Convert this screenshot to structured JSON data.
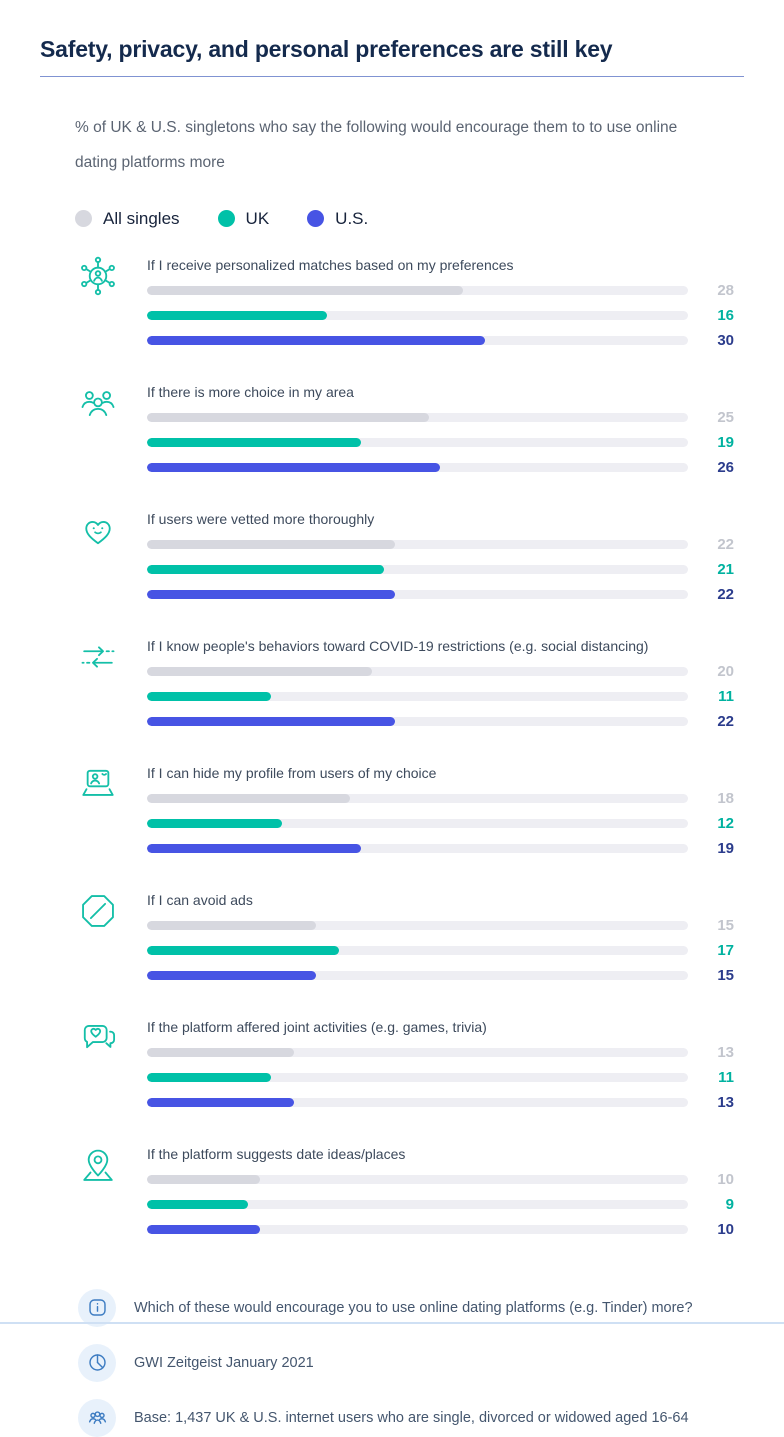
{
  "page": {
    "title": "Safety, privacy, and personal preferences are still key",
    "subtitle": "% of UK & U.S. singletons who say the following would encourage them to to use online dating platforms more"
  },
  "colors": {
    "all_singles_bar": "#d7d8df",
    "uk_bar": "#00c1a8",
    "us_bar": "#4754e4",
    "all_singles_value": "#c2c5cd",
    "uk_value": "#00b2a0",
    "us_value": "#2b3c8c",
    "bar_track": "#eeeef3",
    "icon_accent": "#14bfa8",
    "footnote_icon_accent": "#3d7cc2",
    "title_rule": "#8093d2"
  },
  "legend": [
    {
      "label": "All singles",
      "color": "#d7d8df"
    },
    {
      "label": "UK",
      "color": "#00c1a8"
    },
    {
      "label": "U.S.",
      "color": "#4754e4"
    }
  ],
  "chart_data": {
    "type": "bar",
    "orientation": "horizontal",
    "title": "Safety, privacy, and personal preferences are still key",
    "subtitle": "% of UK & U.S. singletons who say the following would encourage them to to use online dating platforms more",
    "xlim": [
      0,
      48
    ],
    "legend_position": "top",
    "grid": false,
    "categories": [
      "If I receive personalized matches based on my preferences",
      "If there is more choice in my area",
      "If users were vetted more thoroughly",
      "If I know people's behaviors toward COVID-19 restrictions (e.g. social distancing)",
      "If I can hide my profile from users of my choice",
      "If I can avoid ads",
      "If the platform affered joint activities (e.g. games, trivia)",
      "If the platform suggests date ideas/places"
    ],
    "icons": [
      "personalized-matches-icon",
      "more-choice-icon",
      "vetted-users-icon",
      "covid-behaviors-icon",
      "hide-profile-icon",
      "avoid-ads-icon",
      "joint-activities-icon",
      "date-ideas-icon"
    ],
    "series": [
      {
        "name": "All singles",
        "color": "#d7d8df",
        "value_color": "#c2c5cd",
        "values": [
          28,
          25,
          22,
          20,
          18,
          15,
          13,
          10
        ]
      },
      {
        "name": "UK",
        "color": "#00c1a8",
        "value_color": "#00b2a0",
        "values": [
          16,
          19,
          21,
          11,
          12,
          17,
          11,
          9
        ]
      },
      {
        "name": "U.S.",
        "color": "#4754e4",
        "value_color": "#2b3c8c",
        "values": [
          30,
          26,
          22,
          22,
          19,
          15,
          13,
          10
        ]
      }
    ]
  },
  "footnotes": [
    {
      "icon": "info-icon",
      "text": "Which of these would encourage you to use online dating platforms (e.g. Tinder) more?"
    },
    {
      "icon": "pie-chart-icon",
      "text": "GWI Zeitgeist January 2021"
    },
    {
      "icon": "audience-base-icon",
      "text": "Base: 1,437 UK & U.S. internet users who are single, divorced or widowed aged 16-64"
    }
  ]
}
